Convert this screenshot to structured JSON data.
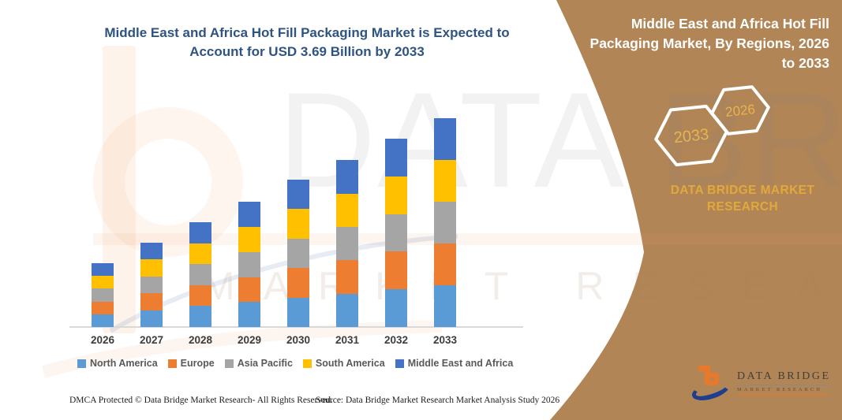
{
  "header": {
    "title": "Middle East and Africa Hot Fill Packaging Market is Expected to Account for USD 3.69 Billion by 2033"
  },
  "side_panel": {
    "heading": "Middle East and Africa Hot Fill Packaging Market, By Regions, 2026 to 2033",
    "hexagon_back_year": "2033",
    "hexagon_front_year": "2026",
    "brand": "DATA BRIDGE MARKET RESEARCH",
    "panel_color": "#B28557",
    "gold_color": "#DFA93C"
  },
  "watermark": {
    "line1": "DATA BRIDGE",
    "line2": "MARKET RESEARCH"
  },
  "logo": {
    "name": "DATA BRIDGE",
    "tagline": "MARKET RESEARCH"
  },
  "footer": {
    "dmca": "DMCA Protected © Data Bridge Market Research- All Rights Reserved.",
    "source": "Source: Data Bridge Market Research Market Analysis Study 2026"
  },
  "chart_data": {
    "type": "bar",
    "stacked": true,
    "title": "Middle East and Africa Hot Fill Packaging Market, By Regions, 2026 to 2033",
    "unit": "USD Billion",
    "categories": [
      "2026",
      "2027",
      "2028",
      "2029",
      "2030",
      "2031",
      "2032",
      "2033"
    ],
    "series": [
      {
        "name": "North America",
        "color": "#5B9BD5",
        "values": [
          0.226,
          0.298,
          0.37,
          0.442,
          0.521,
          0.59,
          0.666,
          0.738
        ]
      },
      {
        "name": "Europe",
        "color": "#ED7D31",
        "values": [
          0.226,
          0.298,
          0.37,
          0.442,
          0.521,
          0.59,
          0.666,
          0.738
        ]
      },
      {
        "name": "Asia Pacific",
        "color": "#A5A5A5",
        "values": [
          0.226,
          0.298,
          0.37,
          0.442,
          0.521,
          0.59,
          0.666,
          0.738
        ]
      },
      {
        "name": "South America",
        "color": "#FFC000",
        "values": [
          0.226,
          0.298,
          0.37,
          0.442,
          0.521,
          0.59,
          0.666,
          0.738
        ]
      },
      {
        "name": "Middle East and Africa",
        "color": "#4472C4",
        "values": [
          0.226,
          0.298,
          0.37,
          0.442,
          0.521,
          0.59,
          0.666,
          0.738
        ]
      }
    ],
    "totals": [
      1.13,
      1.49,
      1.85,
      2.21,
      2.6,
      2.95,
      3.33,
      3.69
    ],
    "ylim": [
      0,
      3.69
    ],
    "grid": false,
    "legend_position": "bottom",
    "xlabel": "",
    "ylabel": ""
  }
}
